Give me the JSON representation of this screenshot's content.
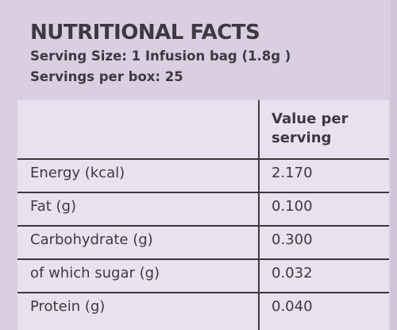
{
  "label": {
    "title": "NUTRITIONAL FACTS",
    "serving_size": "Serving Size: 1 Infusion bag (1.8g )",
    "servings_per_box": "Servings per box: 25"
  },
  "table": {
    "column_header_line1": "Value per",
    "column_header_line2": "serving",
    "rows": [
      {
        "label": "Energy (kcal)",
        "value": "2.170"
      },
      {
        "label": "Fat (g)",
        "value": "0.100"
      },
      {
        "label": "Carbohydrate (g)",
        "value": "0.300"
      },
      {
        "label": "of which sugar (g)",
        "value": "0.032"
      },
      {
        "label": "Protein (g)",
        "value": "0.040"
      }
    ]
  }
}
